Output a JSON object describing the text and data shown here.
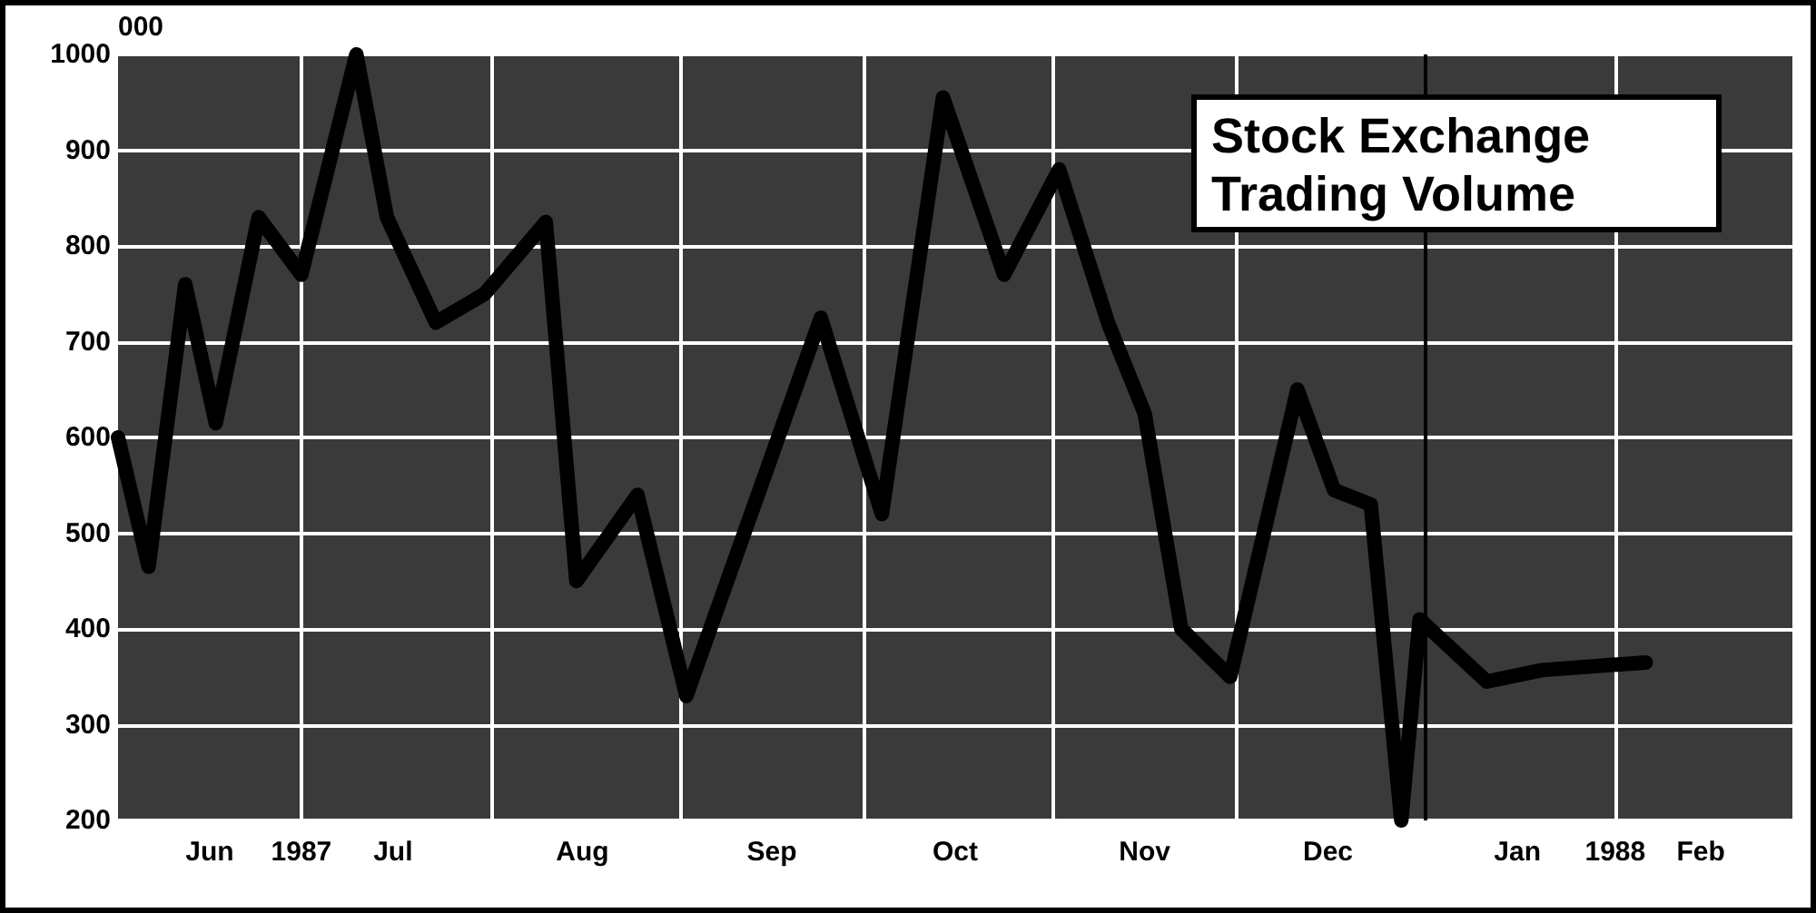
{
  "chart_data": {
    "type": "line",
    "title": "Stock Exchange Trading Volume",
    "ylabel": "000",
    "x": [
      "1987-06-01",
      "1987-06-06",
      "1987-06-12",
      "1987-06-17",
      "1987-06-24",
      "1987-07-01",
      "1987-07-10",
      "1987-07-15",
      "1987-07-23",
      "1987-07-31",
      "1987-08-10",
      "1987-08-15",
      "1987-08-25",
      "1987-09-02",
      "1987-09-24",
      "1987-10-04",
      "1987-10-14",
      "1987-10-24",
      "1987-11-02",
      "1987-11-10",
      "1987-11-16",
      "1987-11-22",
      "1987-11-30",
      "1987-12-11",
      "1987-12-17",
      "1987-12-23",
      "1987-12-28",
      "1987-12-31",
      "1988-01-11",
      "1988-01-20",
      "1988-02-06"
    ],
    "series": [
      {
        "color": "#000000",
        "values": [
          600,
          465,
          760,
          615,
          830,
          770,
          1000,
          830,
          720,
          750,
          825,
          450,
          540,
          330,
          725,
          520,
          955,
          770,
          880,
          720,
          625,
          400,
          350,
          650,
          545,
          530,
          200,
          410,
          345,
          357,
          365
        ]
      }
    ],
    "xlim": [
      "1987-06-01",
      "1988-03-01"
    ],
    "xticks": [
      {
        "value": "1987-06-16",
        "label": "Jun"
      },
      {
        "value": "1987-07-01",
        "label": "1987"
      },
      {
        "value": "1987-07-16",
        "label": "Jul"
      },
      {
        "value": "1987-08-01",
        "label": null
      },
      {
        "value": "1987-08-16",
        "label": "Aug"
      },
      {
        "value": "1987-09-01",
        "label": null
      },
      {
        "value": "1987-09-16",
        "label": "Sep"
      },
      {
        "value": "1987-10-01",
        "label": null
      },
      {
        "value": "1987-10-16",
        "label": "Oct"
      },
      {
        "value": "1987-11-01",
        "label": null
      },
      {
        "value": "1987-11-16",
        "label": "Nov"
      },
      {
        "value": "1987-12-01",
        "label": null
      },
      {
        "value": "1987-12-16",
        "label": "Dec"
      },
      {
        "value": "1988-01-01",
        "label": null
      },
      {
        "value": "1988-01-16",
        "label": "Jan"
      },
      {
        "value": "1988-02-01",
        "label": "1988"
      },
      {
        "value": "1988-02-15",
        "label": "Feb"
      }
    ],
    "ylim": [
      200,
      1000
    ],
    "yticks": [
      200,
      300,
      400,
      500,
      600,
      700,
      800,
      900,
      1000
    ],
    "ref_lines": [
      {
        "axis": "x",
        "value": "1988-01-01",
        "color": "#000000"
      }
    ],
    "grid": true,
    "marker": "none",
    "line_style": "solid"
  }
}
